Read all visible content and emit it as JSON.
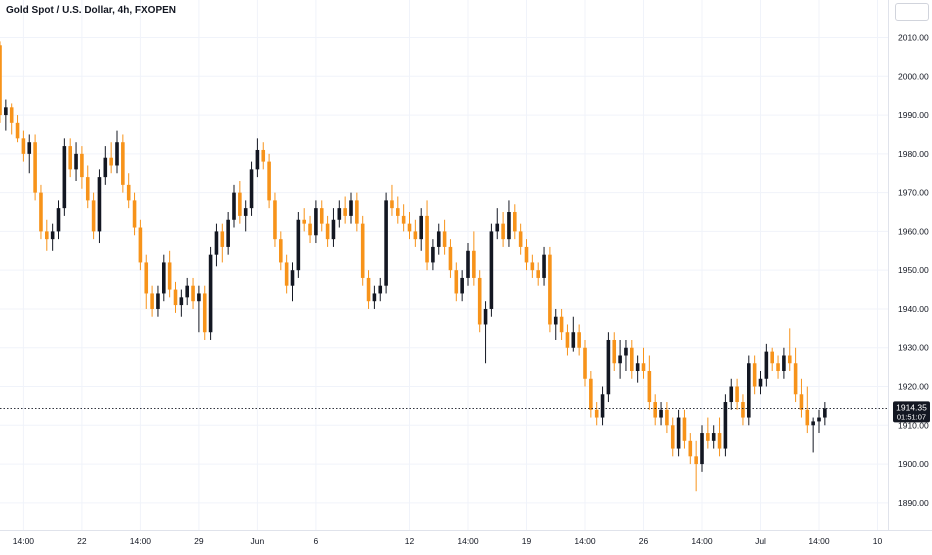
{
  "header": {
    "title": "Gold Spot / U.S. Dollar, 4h, FXOPEN"
  },
  "colors": {
    "up": "#131722",
    "down": "#f7931a",
    "grid": "#f0f3fa",
    "axis_text": "#131722",
    "price_tag_bg": "#131722"
  },
  "price_tag": {
    "price": "1914.35",
    "countdown": "01:51:07"
  },
  "chart_data": {
    "type": "candlestick",
    "title": "Gold Spot / U.S. Dollar, 4h, FXOPEN",
    "ylim": [
      1883,
      2014
    ],
    "y_ticks": [
      1890,
      1900,
      1910,
      1920,
      1930,
      1940,
      1950,
      1960,
      1970,
      1980,
      1990,
      2000,
      2010
    ],
    "y_tick_labels": [
      "1890.00",
      "1900.00",
      "1910.00",
      "1920.00",
      "1930.00",
      "1940.00",
      "1950.00",
      "1960.00",
      "1970.00",
      "1980.00",
      "1990.00",
      "2000.00",
      "2010.00"
    ],
    "x_ticks": [
      {
        "label": "14:00",
        "index": 4
      },
      {
        "label": "22",
        "index": 14
      },
      {
        "label": "14:00",
        "index": 24
      },
      {
        "label": "29",
        "index": 34
      },
      {
        "label": "Jun",
        "index": 44
      },
      {
        "label": "6",
        "index": 54
      },
      {
        "label": "12",
        "index": 70
      },
      {
        "label": "14:00",
        "index": 80
      },
      {
        "label": "19",
        "index": 90
      },
      {
        "label": "14:00",
        "index": 100
      },
      {
        "label": "26",
        "index": 110
      },
      {
        "label": "14:00",
        "index": 120
      },
      {
        "label": "Jul",
        "index": 130
      },
      {
        "label": "14:00",
        "index": 140
      },
      {
        "label": "10",
        "index": 150
      }
    ],
    "grid": true,
    "last_price": 1914.35,
    "ohlc": [
      [
        2008,
        2009,
        1988,
        1990
      ],
      [
        1990,
        1994,
        1986,
        1992
      ],
      [
        1992,
        1993,
        1985,
        1988
      ],
      [
        1988,
        1990,
        1983,
        1984
      ],
      [
        1984,
        1986,
        1978,
        1980
      ],
      [
        1980,
        1985,
        1975,
        1983
      ],
      [
        1983,
        1985,
        1968,
        1970
      ],
      [
        1970,
        1972,
        1958,
        1960
      ],
      [
        1960,
        1963,
        1955,
        1958
      ],
      [
        1958,
        1962,
        1955,
        1960
      ],
      [
        1960,
        1968,
        1958,
        1966
      ],
      [
        1966,
        1984,
        1964,
        1982
      ],
      [
        1982,
        1984,
        1974,
        1976
      ],
      [
        1976,
        1983,
        1973,
        1980
      ],
      [
        1980,
        1982,
        1971,
        1974
      ],
      [
        1974,
        1977,
        1966,
        1968
      ],
      [
        1968,
        1970,
        1958,
        1960
      ],
      [
        1960,
        1976,
        1957,
        1974
      ],
      [
        1974,
        1982,
        1972,
        1979
      ],
      [
        1979,
        1983,
        1975,
        1977
      ],
      [
        1977,
        1986,
        1975,
        1983
      ],
      [
        1983,
        1985,
        1970,
        1972
      ],
      [
        1972,
        1975,
        1966,
        1968
      ],
      [
        1968,
        1970,
        1959,
        1961
      ],
      [
        1961,
        1963,
        1950,
        1952
      ],
      [
        1952,
        1954,
        1940,
        1944
      ],
      [
        1944,
        1946,
        1938,
        1940
      ],
      [
        1940,
        1946,
        1938,
        1944
      ],
      [
        1944,
        1954,
        1942,
        1952
      ],
      [
        1952,
        1955,
        1943,
        1945
      ],
      [
        1945,
        1947,
        1939,
        1941
      ],
      [
        1941,
        1945,
        1938,
        1943
      ],
      [
        1943,
        1948,
        1941,
        1946
      ],
      [
        1946,
        1948,
        1940,
        1942
      ],
      [
        1942,
        1946,
        1934,
        1944
      ],
      [
        1944,
        1946,
        1932,
        1934
      ],
      [
        1934,
        1956,
        1932,
        1954
      ],
      [
        1954,
        1962,
        1951,
        1960
      ],
      [
        1960,
        1962,
        1952,
        1956
      ],
      [
        1956,
        1965,
        1954,
        1963
      ],
      [
        1963,
        1972,
        1961,
        1970
      ],
      [
        1970,
        1973,
        1962,
        1964
      ],
      [
        1964,
        1968,
        1960,
        1966
      ],
      [
        1966,
        1978,
        1964,
        1976
      ],
      [
        1976,
        1984,
        1974,
        1981
      ],
      [
        1981,
        1983,
        1976,
        1978
      ],
      [
        1978,
        1980,
        1966,
        1968
      ],
      [
        1968,
        1970,
        1956,
        1958
      ],
      [
        1958,
        1960,
        1950,
        1952
      ],
      [
        1952,
        1954,
        1944,
        1946
      ],
      [
        1946,
        1952,
        1942,
        1950
      ],
      [
        1950,
        1965,
        1948,
        1963
      ],
      [
        1963,
        1966,
        1960,
        1962
      ],
      [
        1962,
        1964,
        1957,
        1959
      ],
      [
        1959,
        1968,
        1957,
        1966
      ],
      [
        1966,
        1968,
        1960,
        1962
      ],
      [
        1962,
        1964,
        1956,
        1958
      ],
      [
        1958,
        1966,
        1956,
        1963
      ],
      [
        1963,
        1968,
        1961,
        1966
      ],
      [
        1966,
        1969,
        1962,
        1964
      ],
      [
        1964,
        1970,
        1962,
        1968
      ],
      [
        1968,
        1970,
        1960,
        1962
      ],
      [
        1962,
        1964,
        1946,
        1948
      ],
      [
        1948,
        1950,
        1940,
        1942
      ],
      [
        1942,
        1946,
        1940,
        1944
      ],
      [
        1944,
        1948,
        1942,
        1946
      ],
      [
        1946,
        1970,
        1944,
        1968
      ],
      [
        1968,
        1972,
        1964,
        1966
      ],
      [
        1966,
        1969,
        1962,
        1964
      ],
      [
        1964,
        1967,
        1960,
        1962
      ],
      [
        1962,
        1965,
        1958,
        1960
      ],
      [
        1960,
        1963,
        1956,
        1958
      ],
      [
        1958,
        1966,
        1955,
        1964
      ],
      [
        1964,
        1968,
        1950,
        1952
      ],
      [
        1952,
        1958,
        1950,
        1956
      ],
      [
        1956,
        1962,
        1954,
        1960
      ],
      [
        1960,
        1963,
        1954,
        1956
      ],
      [
        1956,
        1958,
        1948,
        1950
      ],
      [
        1950,
        1952,
        1942,
        1944
      ],
      [
        1944,
        1950,
        1942,
        1948
      ],
      [
        1948,
        1957,
        1946,
        1955
      ],
      [
        1955,
        1960,
        1946,
        1948
      ],
      [
        1948,
        1950,
        1934,
        1936
      ],
      [
        1936,
        1942,
        1926,
        1940
      ],
      [
        1940,
        1962,
        1938,
        1960
      ],
      [
        1960,
        1966,
        1958,
        1962
      ],
      [
        1962,
        1965,
        1956,
        1958
      ],
      [
        1958,
        1968,
        1956,
        1965
      ],
      [
        1965,
        1967,
        1958,
        1960
      ],
      [
        1960,
        1962,
        1954,
        1956
      ],
      [
        1956,
        1958,
        1950,
        1952
      ],
      [
        1952,
        1954,
        1948,
        1950
      ],
      [
        1950,
        1952,
        1946,
        1948
      ],
      [
        1948,
        1956,
        1946,
        1954
      ],
      [
        1954,
        1956,
        1934,
        1936
      ],
      [
        1936,
        1940,
        1932,
        1938
      ],
      [
        1938,
        1940,
        1932,
        1934
      ],
      [
        1934,
        1936,
        1928,
        1930
      ],
      [
        1930,
        1938,
        1929,
        1934
      ],
      [
        1934,
        1936,
        1928,
        1930
      ],
      [
        1930,
        1932,
        1920,
        1922
      ],
      [
        1922,
        1924,
        1912,
        1914
      ],
      [
        1914,
        1916,
        1910,
        1912
      ],
      [
        1912,
        1920,
        1910,
        1918
      ],
      [
        1918,
        1934,
        1916,
        1932
      ],
      [
        1932,
        1934,
        1924,
        1926
      ],
      [
        1926,
        1932,
        1922,
        1928
      ],
      [
        1928,
        1932,
        1924,
        1930
      ],
      [
        1930,
        1932,
        1922,
        1924
      ],
      [
        1924,
        1928,
        1921,
        1926
      ],
      [
        1926,
        1930,
        1922,
        1924
      ],
      [
        1924,
        1928,
        1914,
        1916
      ],
      [
        1916,
        1918,
        1910,
        1912
      ],
      [
        1912,
        1916,
        1910,
        1914
      ],
      [
        1914,
        1916,
        1908,
        1910
      ],
      [
        1910,
        1912,
        1902,
        1904
      ],
      [
        1904,
        1914,
        1902,
        1912
      ],
      [
        1912,
        1914,
        1904,
        1906
      ],
      [
        1906,
        1908,
        1900,
        1902
      ],
      [
        1902,
        1906,
        1893,
        1900
      ],
      [
        1900,
        1910,
        1898,
        1908
      ],
      [
        1908,
        1912,
        1904,
        1906
      ],
      [
        1906,
        1910,
        1904,
        1908
      ],
      [
        1908,
        1912,
        1902,
        1904
      ],
      [
        1904,
        1918,
        1902,
        1916
      ],
      [
        1916,
        1922,
        1914,
        1920
      ],
      [
        1920,
        1922,
        1914,
        1916
      ],
      [
        1916,
        1918,
        1910,
        1912
      ],
      [
        1912,
        1928,
        1910,
        1926
      ],
      [
        1926,
        1928,
        1918,
        1920
      ],
      [
        1920,
        1924,
        1918,
        1922
      ],
      [
        1922,
        1931,
        1920,
        1929
      ],
      [
        1929,
        1930,
        1924,
        1926
      ],
      [
        1926,
        1928,
        1922,
        1924
      ],
      [
        1924,
        1930,
        1922,
        1928
      ],
      [
        1928,
        1935,
        1924,
        1926
      ],
      [
        1926,
        1930,
        1916,
        1918
      ],
      [
        1918,
        1922,
        1912,
        1914
      ],
      [
        1914,
        1920,
        1908,
        1910
      ],
      [
        1910,
        1912,
        1903,
        1911
      ],
      [
        1911,
        1914,
        1908,
        1912
      ],
      [
        1912,
        1916,
        1910,
        1914.35
      ]
    ]
  }
}
